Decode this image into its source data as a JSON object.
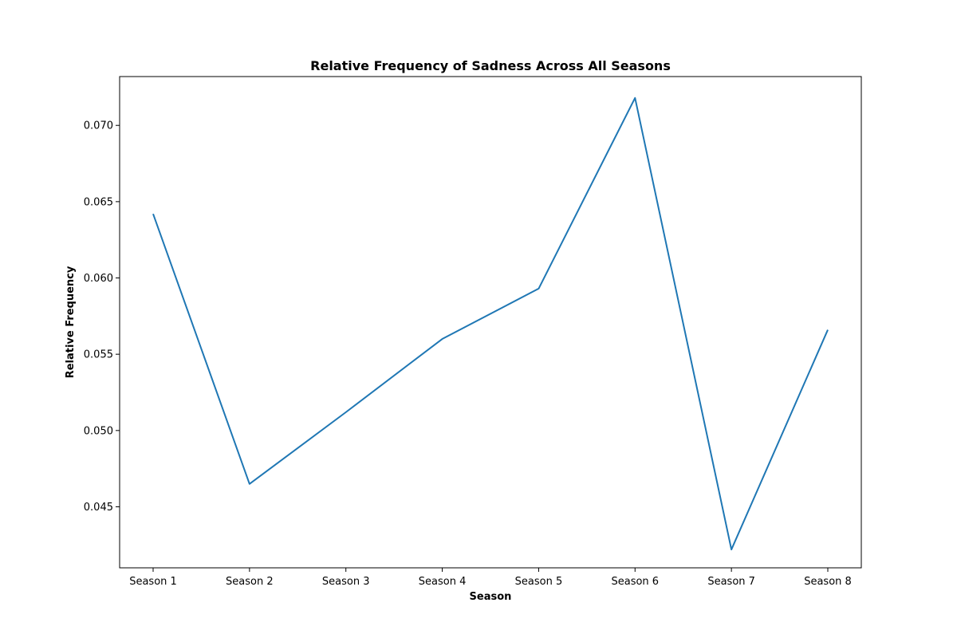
{
  "chart_data": {
    "type": "line",
    "title": "Relative Frequency of Sadness Across All Seasons",
    "xlabel": "Season",
    "ylabel": "Relative Frequency",
    "categories": [
      "Season 1",
      "Season 2",
      "Season 3",
      "Season 4",
      "Season 5",
      "Season 6",
      "Season 7",
      "Season 8"
    ],
    "series": [
      {
        "values": [
          0.0642,
          0.0465,
          0.0512,
          0.056,
          0.0593,
          0.0718,
          0.0422,
          0.0566
        ],
        "color": "#1f77b4"
      }
    ],
    "ylim": [
      0.041,
      0.0732
    ],
    "yticks": [
      0.045,
      0.05,
      0.055,
      0.06,
      0.065,
      0.07
    ],
    "ytick_labels": [
      "0.045",
      "0.050",
      "0.055",
      "0.060",
      "0.065",
      "0.070"
    ],
    "grid": false,
    "legend": "none"
  }
}
